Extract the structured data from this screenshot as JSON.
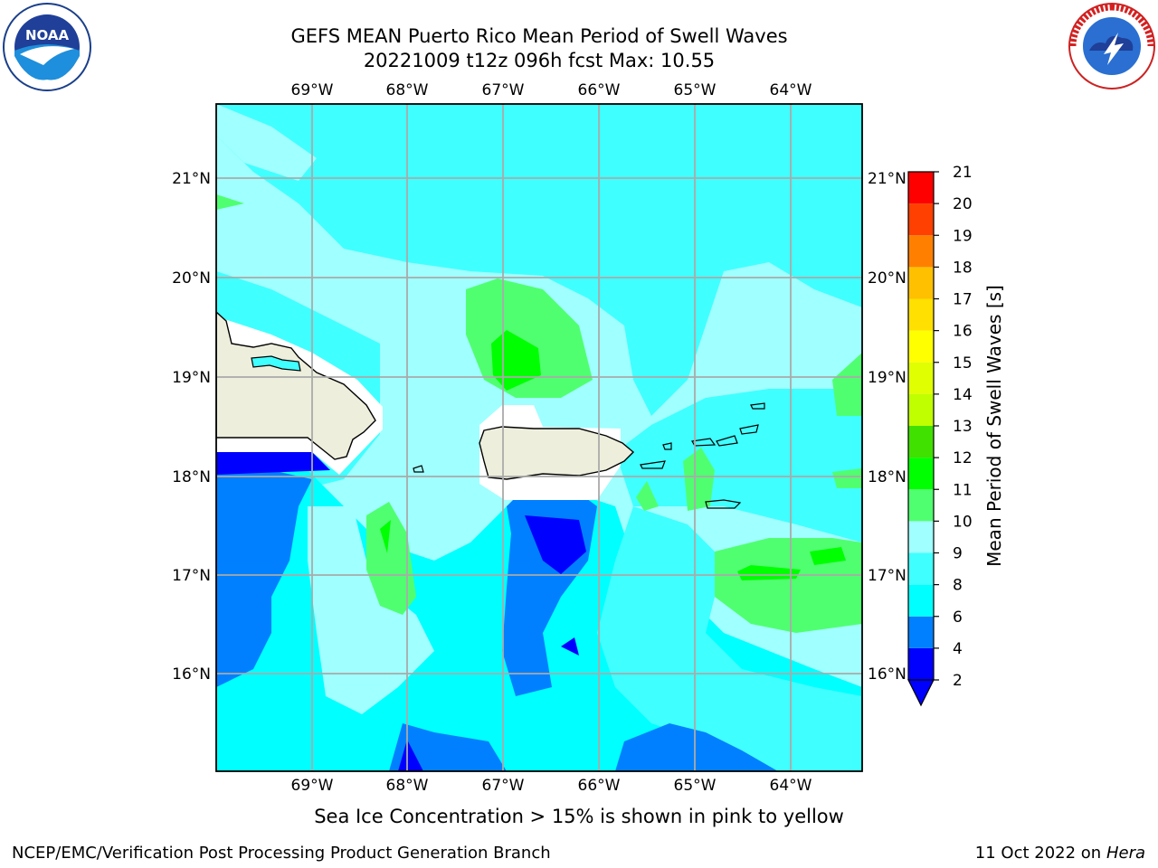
{
  "title": {
    "line1": "GEFS MEAN Puerto Rico Mean Period of Swell Waves",
    "line2": "20221009 t12z 096h fcst   Max: 10.55"
  },
  "longitude_labels": [
    "69°W",
    "68°W",
    "67°W",
    "66°W",
    "65°W",
    "64°W"
  ],
  "latitude_labels": [
    "21°N",
    "20°N",
    "19°N",
    "18°N",
    "17°N",
    "16°N"
  ],
  "colorbar": {
    "label": "Mean Period of Swell Waves [s]",
    "ticks": [
      "21",
      "20",
      "19",
      "18",
      "17",
      "16",
      "15",
      "14",
      "13",
      "12",
      "11",
      "10",
      "9",
      "8",
      "6",
      "4",
      "2"
    ],
    "levels": [
      2,
      4,
      6,
      8,
      9,
      10,
      11,
      12,
      13,
      14,
      15,
      16,
      17,
      18,
      19,
      20,
      21
    ],
    "colors": [
      "#0000ff",
      "#0080ff",
      "#00ffff",
      "#40ffff",
      "#a0ffff",
      "#50ff70",
      "#00ff00",
      "#40e000",
      "#c0ff00",
      "#e0ff00",
      "#ffff00",
      "#ffe000",
      "#ffc000",
      "#ff8000",
      "#ff4000",
      "#ff0000"
    ],
    "extend_color": "#0000ff"
  },
  "note": "Sea Ice Concentration > 15% is shown in pink to yellow",
  "footer": {
    "left": "NCEP/EMC/Verification Post Processing Product Generation Branch",
    "date": "11 Oct 2022 on ",
    "machine": "Hera"
  },
  "logos": {
    "left_name": "noaa-logo",
    "left_text": "NOAA",
    "right_name": "nws-logo",
    "right_text": "NATIONAL WEATHER SERVICE"
  },
  "map": {
    "background_color": "#40ffff",
    "land_color": "#eeeedd"
  }
}
